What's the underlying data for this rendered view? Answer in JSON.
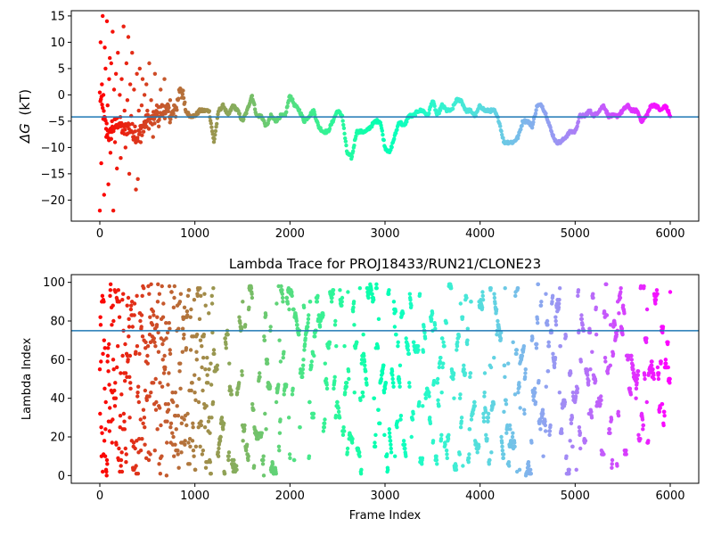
{
  "chart_data": [
    {
      "type": "scatter",
      "title": "",
      "xlabel": "",
      "ylabel": "ΔG (kT)",
      "ylabel_symbol": "ΔG",
      "ylabel_unit": "(kT)",
      "xlim": [
        -300,
        6300
      ],
      "ylim": [
        -24,
        16
      ],
      "xticks": [
        0,
        1000,
        2000,
        3000,
        4000,
        5000,
        6000
      ],
      "yticks": [
        -20,
        -15,
        -10,
        -5,
        0,
        5,
        10,
        15
      ],
      "hline": -4.2,
      "hline_color": "#1f77b4",
      "colormap": "rainbow_r",
      "grid": false,
      "n_points": 6000,
      "trace_x": [
        0,
        50,
        100,
        150,
        200,
        250,
        300,
        350,
        400,
        450,
        500,
        550,
        600,
        650,
        700,
        750,
        800,
        850,
        900,
        950,
        1000,
        1050,
        1100,
        1150,
        1200,
        1250,
        1300,
        1350,
        1400,
        1450,
        1500,
        1550,
        1600,
        1650,
        1700,
        1750,
        1800,
        1850,
        1900,
        1950,
        2000,
        2050,
        2100,
        2150,
        2200,
        2250,
        2300,
        2350,
        2400,
        2450,
        2500,
        2550,
        2600,
        2650,
        2700,
        2750,
        2800,
        2850,
        2900,
        2950,
        3000,
        3050,
        3100,
        3150,
        3200,
        3250,
        3300,
        3350,
        3400,
        3450,
        3500,
        3550,
        3600,
        3650,
        3700,
        3750,
        3800,
        3850,
        3900,
        3950,
        4000,
        4050,
        4100,
        4150,
        4200,
        4250,
        4300,
        4350,
        4400,
        4450,
        4500,
        4550,
        4600,
        4650,
        4700,
        4750,
        4800,
        4850,
        4900,
        4950,
        5000,
        5050,
        5100,
        5150,
        5200,
        5250,
        5300,
        5350,
        5400,
        5450,
        5500,
        5550,
        5600,
        5650,
        5700,
        5750,
        5800,
        5850,
        5900,
        5950,
        6000
      ],
      "trace_y": [
        0,
        -5,
        -8,
        -6,
        -5,
        -7,
        -6,
        -7,
        -8,
        -6,
        -5,
        -5,
        -4,
        -3,
        -3,
        -4,
        -3,
        2,
        -3,
        -4,
        -4,
        -3,
        -3,
        -3,
        -9,
        -3,
        -2,
        -4,
        -2,
        -3,
        -5,
        -3,
        0,
        -4,
        -4,
        -6,
        -4,
        -5,
        -4,
        -4,
        0,
        -2,
        -3,
        -5,
        -4,
        -3,
        -6,
        -7,
        -7,
        -5,
        -3,
        -4,
        -11,
        -12,
        -7,
        -7,
        -7,
        -6,
        -5,
        -5,
        -10,
        -11,
        -8,
        -5,
        -6,
        -4,
        -4,
        -3,
        -3,
        -4,
        -1,
        -4,
        -2,
        -3,
        -3,
        -1,
        -1,
        -3,
        -3,
        -4,
        -2,
        -3,
        -3,
        -3,
        -5,
        -9,
        -9,
        -9,
        -8,
        -5,
        -5,
        -6,
        -2,
        -2,
        -4,
        -7,
        -9,
        -9,
        -8,
        -7,
        -7,
        -4,
        -4,
        -3,
        -4,
        -3,
        -2,
        -4,
        -4,
        -4,
        -3,
        -2,
        -3,
        -3,
        -5,
        -4,
        -2,
        -2,
        -3,
        -2,
        -4
      ],
      "scatter_x": [
        0,
        8,
        15,
        22,
        30,
        38,
        45,
        52,
        60,
        68,
        75,
        82,
        90,
        98,
        105,
        112,
        120,
        128,
        135,
        142,
        150,
        160,
        170,
        180,
        190,
        200,
        210,
        220,
        230,
        240,
        250,
        260,
        270,
        280,
        290,
        300,
        310,
        320,
        330,
        340,
        350,
        360,
        370,
        380,
        390,
        400,
        410,
        420,
        430,
        440,
        450,
        460,
        470,
        480,
        490,
        500,
        520,
        540,
        560,
        580,
        600,
        620,
        640,
        660,
        680,
        700,
        720,
        740,
        760,
        780
      ],
      "scatter_y": [
        -22,
        10,
        -13,
        2,
        15,
        0,
        -19,
        9,
        5,
        -8,
        14,
        -2,
        -17,
        3,
        7,
        -11,
        6,
        -5,
        12,
        -22,
        1,
        -9,
        4,
        -14,
        8,
        -6,
        0,
        -12,
        3,
        -7,
        13,
        -3,
        -10,
        6,
        -1,
        11,
        -15,
        2,
        -4,
        8,
        -8,
        1,
        -6,
        -18,
        4,
        -16,
        -3,
        5,
        -9,
        -2,
        3,
        -7,
        0,
        -5,
        2,
        -3,
        6,
        -1,
        -8,
        4,
        -2,
        -6,
        1,
        -4,
        3,
        -3,
        -2,
        -1,
        -4,
        -2
      ]
    },
    {
      "type": "scatter",
      "title": "Lambda Trace for PROJ18433/RUN21/CLONE23",
      "xlabel": "Frame Index",
      "ylabel": "Lambda Index",
      "xlim": [
        -300,
        6300
      ],
      "ylim": [
        -4,
        104
      ],
      "xticks": [
        0,
        1000,
        2000,
        3000,
        4000,
        5000,
        6000
      ],
      "yticks": [
        0,
        20,
        40,
        60,
        80,
        100
      ],
      "hline": 75,
      "hline_color": "#1f77b4",
      "colormap": "rainbow_r",
      "grid": false,
      "n_points": 6000,
      "lambda_range": [
        0,
        99
      ]
    }
  ],
  "colors": {
    "line": "#1f77b4",
    "axis": "#000000",
    "background": "#ffffff"
  }
}
